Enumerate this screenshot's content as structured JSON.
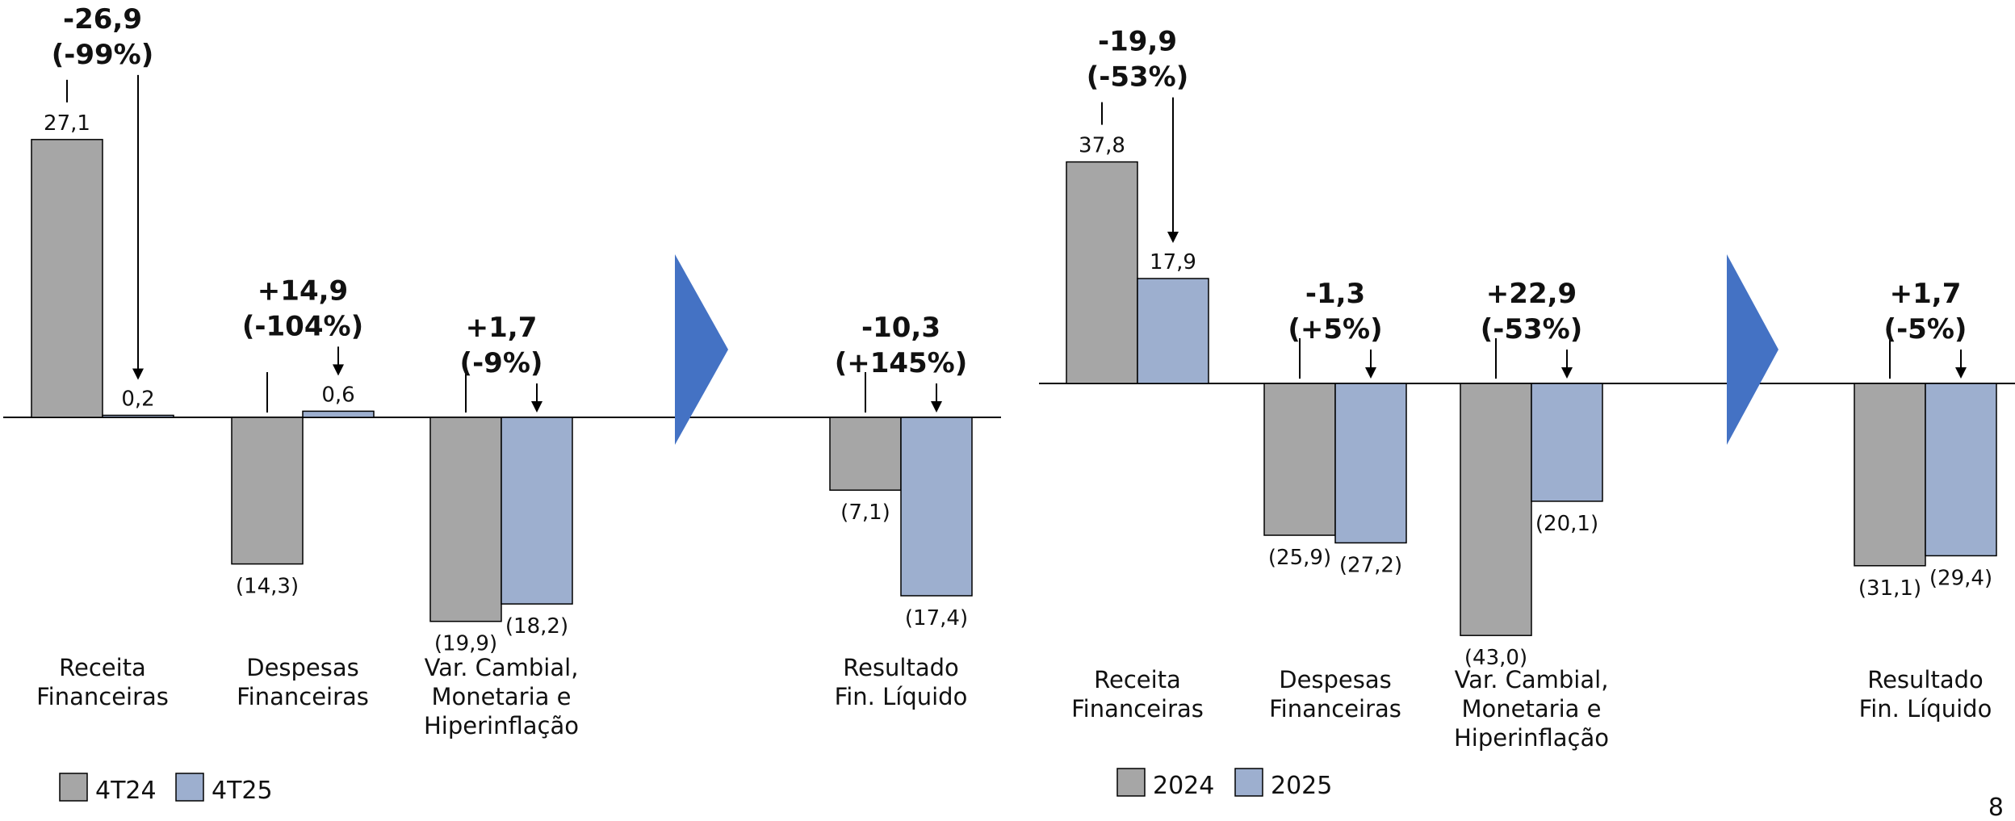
{
  "chart_data": [
    {
      "type": "bar",
      "categories": [
        "Receita Financeiras",
        "Despesas Financeiras",
        "Var. Cambial, Monetaria e Hiperinflação",
        "Resultado Fin. Líquido"
      ],
      "category_lines": [
        [
          "Receita",
          "Financeiras"
        ],
        [
          "Despesas",
          "Financeiras"
        ],
        [
          "Var. Cambial,",
          "Monetaria e",
          "Hiperinflação"
        ],
        [
          "Resultado",
          "Fin. Líquido"
        ]
      ],
      "series": [
        {
          "name": "4T24",
          "values": [
            27.1,
            -14.3,
            -19.9,
            -7.1
          ],
          "labels": [
            "27,1",
            "(14,3)",
            "(19,9)",
            "(7,1)"
          ]
        },
        {
          "name": "4T25",
          "values": [
            0.2,
            0.6,
            -18.2,
            -17.4
          ],
          "labels": [
            "0,2",
            "0,6",
            "(18,2)",
            "(17,4)"
          ]
        }
      ],
      "changes": [
        {
          "delta": "-26,9",
          "pct": "(-99%)"
        },
        {
          "delta": "+14,9",
          "pct": "(-104%)"
        },
        {
          "delta": "+1,7",
          "pct": "(-9%)"
        },
        {
          "delta": "-10,3",
          "pct": "(+145%)"
        }
      ],
      "legend": [
        "4T24",
        "4T25"
      ],
      "legend_position": "bottom-left"
    },
    {
      "type": "bar",
      "categories": [
        "Receita Financeiras",
        "Despesas Financeiras",
        "Var. Cambial, Monetaria e Hiperinflação",
        "Resultado Fin. Líquido"
      ],
      "category_lines": [
        [
          "Receita",
          "Financeiras"
        ],
        [
          "Despesas",
          "Financeiras"
        ],
        [
          "Var. Cambial,",
          "Monetaria e",
          "Hiperinflação"
        ],
        [
          "Resultado",
          "Fin. Líquido"
        ]
      ],
      "series": [
        {
          "name": "2024",
          "values": [
            37.8,
            -25.9,
            -43.0,
            -31.1
          ],
          "labels": [
            "37,8",
            "(25,9)",
            "(43,0)",
            "(31,1)"
          ]
        },
        {
          "name": "2025",
          "values": [
            17.9,
            -27.2,
            -20.1,
            -29.4
          ],
          "labels": [
            "17,9",
            "(27,2)",
            "(20,1)",
            "(29,4)"
          ]
        }
      ],
      "changes": [
        {
          "delta": "-19,9",
          "pct": "(-53%)"
        },
        {
          "delta": "-1,3",
          "pct": "(+5%)"
        },
        {
          "delta": "+22,9",
          "pct": "(-53%)"
        },
        {
          "delta": "+1,7",
          "pct": "(-5%)"
        }
      ],
      "legend": [
        "2024",
        "2025"
      ],
      "legend_position": "bottom-left"
    }
  ],
  "colors": {
    "series_a": "#a6a6a6",
    "series_b": "#9dafcf",
    "arrow": "#4472c4"
  },
  "page_number": "8"
}
